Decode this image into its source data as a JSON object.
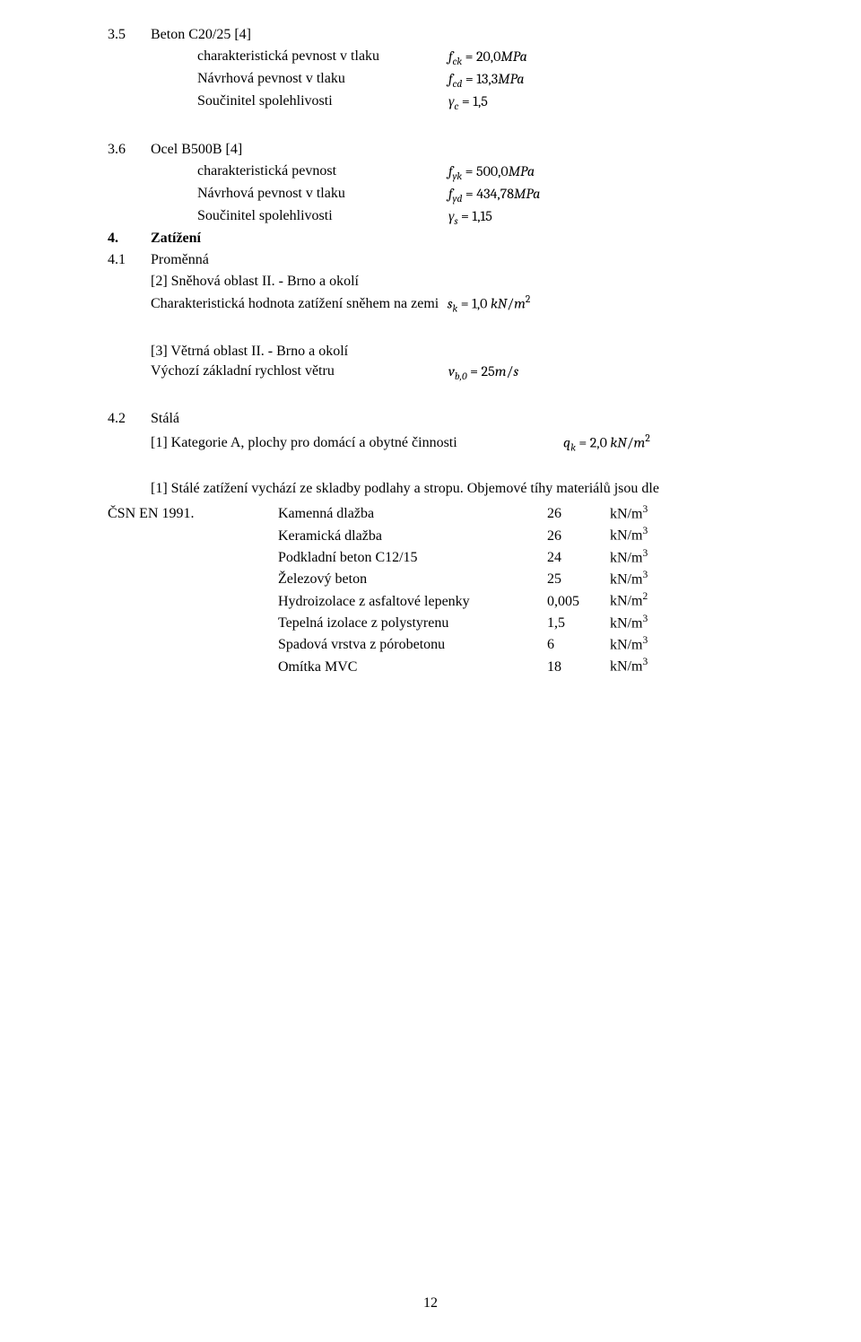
{
  "sections": {
    "s35": {
      "num": "3.5",
      "title": "Beton C20/25 [4]"
    },
    "s36": {
      "num": "3.6",
      "title": "Ocel B500B [4]"
    },
    "s4": {
      "num": "4.",
      "title": "Zatížení"
    },
    "s41": {
      "num": "4.1",
      "title": "Proměnná"
    },
    "s42": {
      "num": "4.2",
      "title": "Stálá"
    }
  },
  "beton": {
    "rows": [
      {
        "label": "charakteristická pevnost v tlaku",
        "formula": "f<sub>ck</sub> <span class=\"upright\">= 20,0</span>MPa"
      },
      {
        "label": "Návrhová pevnost v tlaku",
        "formula": "f<sub>cd</sub> <span class=\"upright\">= 13,3</span>MPa"
      },
      {
        "label": "Součinitel spolehlivosti",
        "formula": "γ<sub>c</sub> <span class=\"upright\">= 1,5</span>"
      }
    ]
  },
  "ocel": {
    "rows": [
      {
        "label": "charakteristická pevnost",
        "formula": "f<sub>yk</sub> <span class=\"upright\">= 500,0</span>MPa"
      },
      {
        "label": "Návrhová pevnost v tlaku",
        "formula": "f<sub>yd</sub> <span class=\"upright\">= 434,78</span>MPa"
      },
      {
        "label": "Součinitel spolehlivosti",
        "formula": "γ<sub>s</sub> <span class=\"upright\">= 1,15</span>"
      }
    ]
  },
  "snow": {
    "region": "[2] Sněhová oblast II. - Brno a okolí",
    "label": "Charakteristická hodnota zatížení sněhem na zemi",
    "formula": "&nbsp;s<sub>k</sub> <span class=\"upright\">= 1,0 </span>kN<span class=\"upright\">/</span>m<sup>2</sup>"
  },
  "wind": {
    "region": "[3] Větrná oblast II. - Brno a okolí",
    "label": "Výchozí základní rychlost větru",
    "formula": "v<sub>b,0</sub> <span class=\"upright\">= 25</span>m<span class=\"upright\">/</span>s"
  },
  "stala": {
    "kategorie_label": "[1] Kategorie A, plochy pro domácí a obytné činnosti",
    "kategorie_formula": "q<sub>k</sub> <span class=\"upright\">= 2,0 </span>kN<span class=\"upright\">/</span>m<sup>2</sup>",
    "paragraph_part1": "[1] Stálé zatížení vychází ze skladby podlahy a stropu. Objemové tíhy materiálů jsou dle",
    "csn_prefix": "ČSN EN 1991.",
    "materials": [
      {
        "name": "Kamenná dlažba",
        "value": "26",
        "unit": "kN/m<sup>3</sup>"
      },
      {
        "name": "Keramická dlažba",
        "value": "26",
        "unit": "kN/m<sup>3</sup>"
      },
      {
        "name": "Podkladní beton C12/15",
        "value": "24",
        "unit": "kN/m<sup>3</sup>"
      },
      {
        "name": "Železový beton",
        "value": "25",
        "unit": "kN/m<sup>3</sup>"
      },
      {
        "name": "Hydroizolace z asfaltové lepenky",
        "value": "0,005",
        "unit": "kN/m<sup>2</sup>"
      },
      {
        "name": "Tepelná izolace z polystyrenu",
        "value": "1,5",
        "unit": "kN/m<sup>3</sup>"
      },
      {
        "name": "Spadová vrstva z pórobetonu",
        "value": "6",
        "unit": "kN/m<sup>3</sup>"
      },
      {
        "name": "Omítka MVC",
        "value": "18",
        "unit": "kN/m<sup>3</sup>"
      }
    ]
  },
  "page_number": "12",
  "style": {
    "font_family": "Times New Roman",
    "body_fontsize_pt": 12,
    "text_color": "#000000",
    "background_color": "#ffffff"
  }
}
